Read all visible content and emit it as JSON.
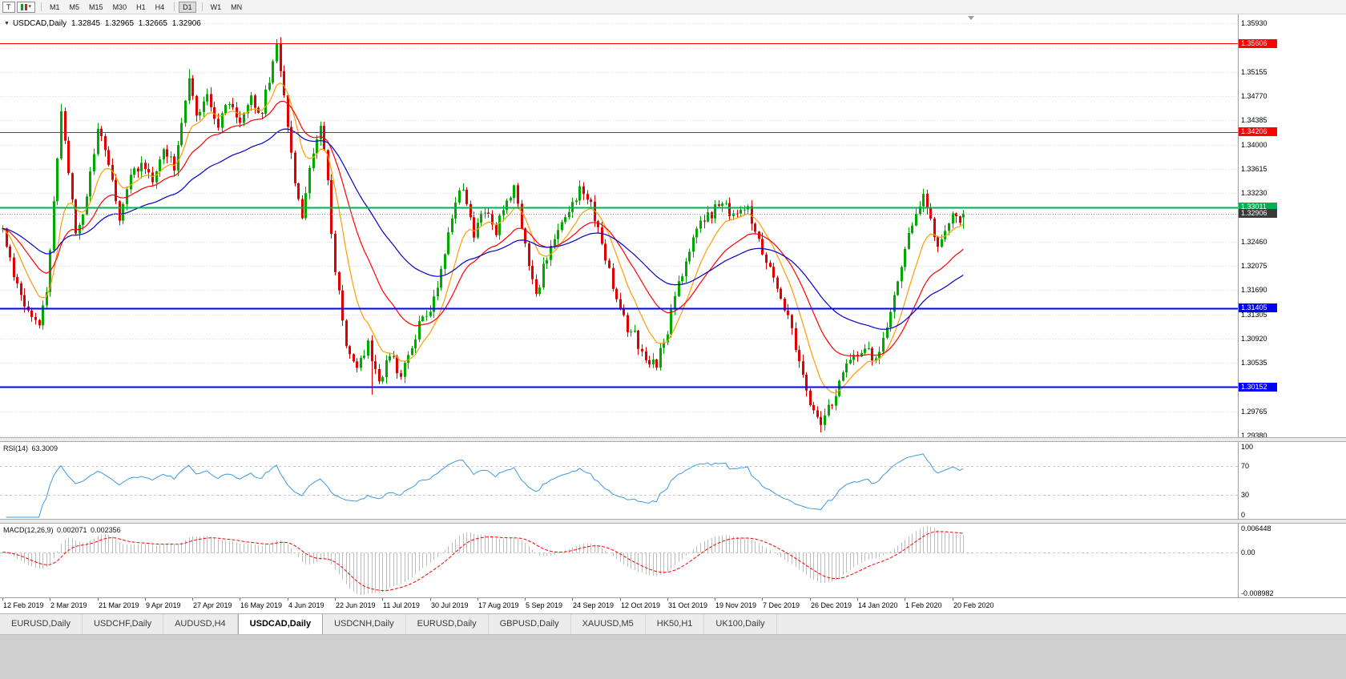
{
  "toolbar": {
    "tool_button": "T",
    "dropdown_caret": "▾",
    "timeframe_groups": [
      [
        "M1",
        "M5",
        "M15",
        "M30",
        "H1",
        "H4"
      ],
      [
        "D1"
      ],
      [
        "W1",
        "MN"
      ]
    ],
    "active_timeframe": "D1"
  },
  "chart": {
    "collapse_arrow": "▼",
    "title": "USDCAD,Daily 1.32845 1.32965 1.32665 1.32906"
  },
  "y_axis": {
    "labels": [
      "1.35930",
      "1.35540",
      "1.35155",
      "1.34770",
      "1.34385",
      "1.34000",
      "1.33615",
      "1.33230",
      "1.32845",
      "1.32460",
      "1.32075",
      "1.31690",
      "1.31305",
      "1.30920",
      "1.30535",
      "1.30150",
      "1.29765",
      "1.29380"
    ]
  },
  "x_axis": {
    "labels": [
      {
        "text": "12 Feb 2019",
        "index": 0
      },
      {
        "text": "2 Mar 2019",
        "index": 13
      },
      {
        "text": "21 Mar 2019",
        "index": 26
      },
      {
        "text": "9 Apr 2019",
        "index": 39
      },
      {
        "text": "27 Apr 2019",
        "index": 52
      },
      {
        "text": "16 May 2019",
        "index": 65
      },
      {
        "text": "4 Jun 2019",
        "index": 78
      },
      {
        "text": "22 Jun 2019",
        "index": 91
      },
      {
        "text": "11 Jul 2019",
        "index": 104
      },
      {
        "text": "30 Jul 2019",
        "index": 117
      },
      {
        "text": "17 Aug 2019",
        "index": 130
      },
      {
        "text": "5 Sep 2019",
        "index": 143
      },
      {
        "text": "24 Sep 2019",
        "index": 156
      },
      {
        "text": "12 Oct 2019",
        "index": 169
      },
      {
        "text": "31 Oct 2019",
        "index": 182
      },
      {
        "text": "19 Nov 2019",
        "index": 195
      },
      {
        "text": "7 Dec 2019",
        "index": 208
      },
      {
        "text": "26 Dec 2019",
        "index": 221
      },
      {
        "text": "14 Jan 2020",
        "index": 234
      },
      {
        "text": "1 Feb 2020",
        "index": 247
      },
      {
        "text": "20 Feb 2020",
        "index": 260
      }
    ]
  },
  "levels": [
    {
      "label": "1.35606",
      "price": 1.35606,
      "color": "#ff0000",
      "width": 1
    },
    {
      "label": "1.34206",
      "price": 1.34206,
      "color": "#ff0000",
      "width": 1
    },
    {
      "label": "1.33011",
      "price": 1.33011,
      "color": "#00b050",
      "width": 2
    },
    {
      "label": "1.31405",
      "price": 1.31405,
      "color": "#0000ff",
      "width": 2
    },
    {
      "label": "1.30152",
      "price": 1.30152,
      "color": "#0000ff",
      "width": 2
    }
  ],
  "bid": {
    "label": "1.32906",
    "price": 1.32906,
    "tag_color": "#3a3a3a",
    "line_color": "#9a9a9a"
  },
  "rsi_panel": {
    "label": "RSI(14) 63.3009",
    "period": 14,
    "current": 63.3009,
    "line_color": "#3d9ae1",
    "level_lines": [
      70,
      30
    ],
    "scale": [
      {
        "text": "100",
        "value": 100
      },
      {
        "text": "70",
        "value": 70
      },
      {
        "text": "30",
        "value": 30
      },
      {
        "text": "0",
        "value": 0
      }
    ]
  },
  "macd_panel": {
    "label": "MACD(12,26,9) 0.002071 0.002356",
    "fast": 12,
    "slow": 26,
    "signal": 9,
    "macd_current": 0.002071,
    "signal_current": 0.002356,
    "hist_color": "#bdbdbd",
    "signal_color": "#ff0000",
    "scale": [
      {
        "text": "0.006448",
        "role": "max"
      },
      {
        "text": "0.00",
        "role": "zero"
      },
      {
        "text": "-0.008982",
        "role": "min"
      }
    ]
  },
  "chart_data": {
    "type": "candlestick",
    "symbol": "USDCAD",
    "timeframe": "Daily",
    "last_bar": {
      "open": 1.32845,
      "high": 1.32965,
      "low": 1.32665,
      "close": 1.32906
    },
    "visible_price_range": [
      1.29355,
      1.3607
    ],
    "candle_count": 264,
    "bars_per_date_label": 13,
    "seed": 20200220,
    "up_color": "#00a800",
    "down_color": "#e00000",
    "moving_averages": [
      {
        "period": 10,
        "color": "#ff9d00"
      },
      {
        "period": 24,
        "color": "#ff0000"
      },
      {
        "period": 52,
        "color": "#0000cc"
      }
    ],
    "path_anchors": [
      [
        0,
        1.3265
      ],
      [
        2,
        1.3215
      ],
      [
        5,
        1.316
      ],
      [
        8,
        1.3125
      ],
      [
        10,
        1.311
      ],
      [
        12,
        1.317
      ],
      [
        14,
        1.33
      ],
      [
        16,
        1.3455
      ],
      [
        18,
        1.336
      ],
      [
        20,
        1.3255
      ],
      [
        22,
        1.329
      ],
      [
        24,
        1.336
      ],
      [
        26,
        1.3425
      ],
      [
        29,
        1.337
      ],
      [
        32,
        1.3285
      ],
      [
        35,
        1.335
      ],
      [
        38,
        1.337
      ],
      [
        41,
        1.334
      ],
      [
        44,
        1.3395
      ],
      [
        47,
        1.336
      ],
      [
        49,
        1.344
      ],
      [
        51,
        1.3505
      ],
      [
        53,
        1.345
      ],
      [
        56,
        1.348
      ],
      [
        59,
        1.343
      ],
      [
        62,
        1.347
      ],
      [
        65,
        1.3435
      ],
      [
        68,
        1.348
      ],
      [
        71,
        1.345
      ],
      [
        74,
        1.3535
      ],
      [
        75,
        1.3555
      ],
      [
        77,
        1.3475
      ],
      [
        80,
        1.334
      ],
      [
        82,
        1.329
      ],
      [
        85,
        1.339
      ],
      [
        87,
        1.343
      ],
      [
        89,
        1.334
      ],
      [
        91,
        1.3195
      ],
      [
        94,
        1.3085
      ],
      [
        97,
        1.304
      ],
      [
        100,
        1.309
      ],
      [
        103,
        1.302
      ],
      [
        106,
        1.3065
      ],
      [
        109,
        1.3035
      ],
      [
        112,
        1.3085
      ],
      [
        115,
        1.3125
      ],
      [
        118,
        1.315
      ],
      [
        121,
        1.323
      ],
      [
        124,
        1.331
      ],
      [
        126,
        1.3335
      ],
      [
        129,
        1.3255
      ],
      [
        132,
        1.33
      ],
      [
        135,
        1.3265
      ],
      [
        138,
        1.3305
      ],
      [
        140,
        1.3335
      ],
      [
        143,
        1.3235
      ],
      [
        146,
        1.3155
      ],
      [
        149,
        1.3225
      ],
      [
        152,
        1.3265
      ],
      [
        155,
        1.3295
      ],
      [
        158,
        1.333
      ],
      [
        161,
        1.3305
      ],
      [
        164,
        1.3245
      ],
      [
        167,
        1.3175
      ],
      [
        170,
        1.312
      ],
      [
        173,
        1.3095
      ],
      [
        176,
        1.3065
      ],
      [
        179,
        1.3045
      ],
      [
        182,
        1.311
      ],
      [
        185,
        1.318
      ],
      [
        188,
        1.3235
      ],
      [
        191,
        1.3275
      ],
      [
        194,
        1.329
      ],
      [
        197,
        1.331
      ],
      [
        200,
        1.3285
      ],
      [
        203,
        1.3305
      ],
      [
        206,
        1.327
      ],
      [
        209,
        1.3215
      ],
      [
        212,
        1.3165
      ],
      [
        215,
        1.3125
      ],
      [
        218,
        1.306
      ],
      [
        221,
        1.299
      ],
      [
        224,
        1.296
      ],
      [
        227,
        1.299
      ],
      [
        230,
        1.304
      ],
      [
        233,
        1.306
      ],
      [
        236,
        1.3075
      ],
      [
        239,
        1.306
      ],
      [
        242,
        1.311
      ],
      [
        245,
        1.318
      ],
      [
        247,
        1.324
      ],
      [
        250,
        1.329
      ],
      [
        252,
        1.332
      ],
      [
        254,
        1.3285
      ],
      [
        256,
        1.324
      ],
      [
        258,
        1.3262
      ],
      [
        260,
        1.329
      ],
      [
        262,
        1.3278
      ],
      [
        263,
        1.32906
      ]
    ],
    "wick_marks": [
      {
        "index": 16,
        "high": 1.3465
      },
      {
        "index": 51,
        "high": 1.352
      },
      {
        "index": 75,
        "high": 1.3566
      },
      {
        "index": 101,
        "low": 1.3003
      },
      {
        "index": 224,
        "low": 1.2943
      },
      {
        "index": 252,
        "high": 1.333
      }
    ]
  },
  "tabs": {
    "items": [
      "EURUSD,Daily",
      "USDCHF,Daily",
      "AUDUSD,H4",
      "USDCAD,Daily",
      "USDCNH,Daily",
      "EURUSD,Daily",
      "GBPUSD,Daily",
      "XAUUSD,M5",
      "HK50,H1",
      "UK100,Daily"
    ],
    "active_index": 3
  }
}
